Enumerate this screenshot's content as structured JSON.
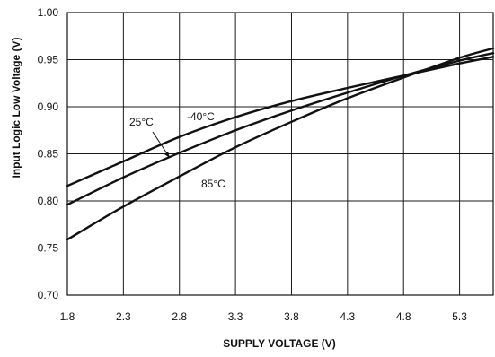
{
  "chart_data": {
    "type": "line",
    "title": "",
    "xlabel": "SUPPLY VOLTAGE (V)",
    "ylabel": "Input Logic Low Voltage (V)",
    "xlim": [
      1.8,
      5.6
    ],
    "ylim": [
      0.7,
      1.0
    ],
    "grid": true,
    "x_ticks": [
      1.8,
      2.3,
      2.8,
      3.3,
      3.8,
      4.3,
      4.8,
      5.3
    ],
    "x_tick_labels": [
      "1.8",
      "2.3",
      "2.8",
      "3.3",
      "3.8",
      "4.3",
      "4.8",
      "5.3"
    ],
    "y_ticks": [
      0.7,
      0.75,
      0.8,
      0.85,
      0.9,
      0.95,
      1.0
    ],
    "y_tick_labels": [
      "0.70",
      "0.75",
      "0.80",
      "0.85",
      "0.90",
      "0.95",
      "1.00"
    ],
    "series": [
      {
        "name": "-40°C",
        "x": [
          1.8,
          2.3,
          2.8,
          3.3,
          3.8,
          4.3,
          4.8,
          5.3,
          5.6
        ],
        "y": [
          0.816,
          0.842,
          0.868,
          0.889,
          0.906,
          0.92,
          0.933,
          0.946,
          0.953
        ]
      },
      {
        "name": "25°C",
        "x": [
          1.8,
          2.3,
          2.8,
          3.3,
          3.8,
          4.3,
          4.8,
          5.3,
          5.6
        ],
        "y": [
          0.796,
          0.825,
          0.851,
          0.875,
          0.896,
          0.915,
          0.933,
          0.949,
          0.957
        ]
      },
      {
        "name": "85°C",
        "x": [
          1.8,
          2.3,
          2.8,
          3.3,
          3.8,
          4.3,
          4.8,
          5.3,
          5.6
        ],
        "y": [
          0.759,
          0.794,
          0.826,
          0.857,
          0.884,
          0.909,
          0.931,
          0.952,
          0.962
        ]
      }
    ],
    "annotations": [
      {
        "text": "25°C",
        "series": "25°C"
      },
      {
        "text": "-40°C",
        "series": "-40°C"
      },
      {
        "text": "85°C",
        "series": "85°C"
      }
    ]
  }
}
